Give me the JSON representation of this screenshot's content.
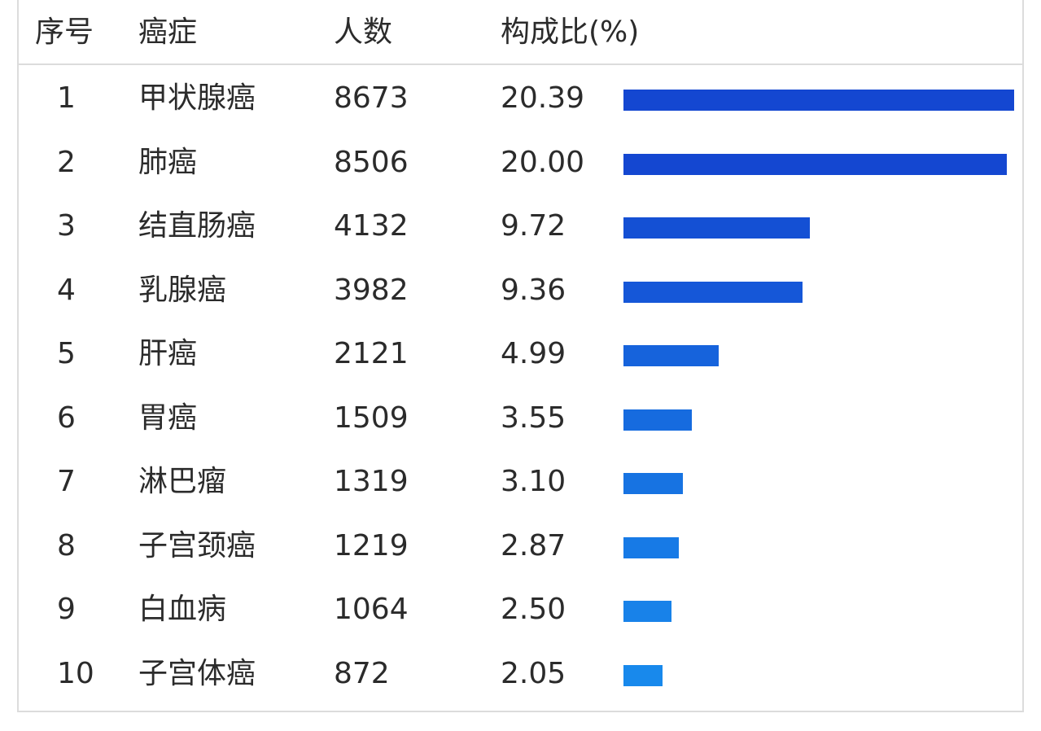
{
  "header": {
    "rank": "序号",
    "name": "癌症",
    "count": "人数",
    "percent": "构成比(%)"
  },
  "colors": {
    "bars": [
      "#1447d1",
      "#1447d1",
      "#1450d4",
      "#1557d8",
      "#1663dc",
      "#166bdf",
      "#1773e2",
      "#177ae6",
      "#1882e9",
      "#1889ec"
    ]
  },
  "chart_data": {
    "type": "bar",
    "orientation": "horizontal",
    "title": "",
    "xlabel": "",
    "ylabel": "",
    "columns": [
      "序号",
      "癌症",
      "人数",
      "构成比(%)"
    ],
    "rows": [
      {
        "rank": "1",
        "name": "甲状腺癌",
        "count": "8673",
        "percent": "20.39"
      },
      {
        "rank": "2",
        "name": "肺癌",
        "count": "8506",
        "percent": "20.00"
      },
      {
        "rank": "3",
        "name": "结直肠癌",
        "count": "4132",
        "percent": "9.72"
      },
      {
        "rank": "4",
        "name": "乳腺癌",
        "count": "3982",
        "percent": "9.36"
      },
      {
        "rank": "5",
        "name": "肝癌",
        "count": "2121",
        "percent": "4.99"
      },
      {
        "rank": "6",
        "name": "胃癌",
        "count": "1509",
        "percent": "3.55"
      },
      {
        "rank": "7",
        "name": "淋巴瘤",
        "count": "1319",
        "percent": "3.10"
      },
      {
        "rank": "8",
        "name": "子宫颈癌",
        "count": "1219",
        "percent": "2.87"
      },
      {
        "rank": "9",
        "name": "白血病",
        "count": "1064",
        "percent": "2.50"
      },
      {
        "rank": "10",
        "name": "子宫体癌",
        "count": "872",
        "percent": "2.05"
      }
    ],
    "categories": [
      "甲状腺癌",
      "肺癌",
      "结直肠癌",
      "乳腺癌",
      "肝癌",
      "胃癌",
      "淋巴瘤",
      "子宫颈癌",
      "白血病",
      "子宫体癌"
    ],
    "values": [
      20.39,
      20.0,
      9.72,
      9.36,
      4.99,
      3.55,
      3.1,
      2.87,
      2.5,
      2.05
    ],
    "xlim": [
      0,
      20.39
    ],
    "grid": false
  }
}
